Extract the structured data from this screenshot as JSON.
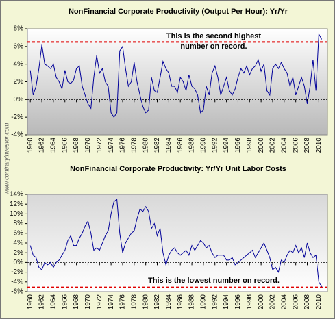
{
  "chart_data": [
    {
      "type": "line",
      "title": "NonFinancial Corporate Productivity (Output Per Hour): Yr/Yr",
      "annotation": [
        "This is the second highest",
        "number on record."
      ],
      "reference_line": 6.5,
      "color": "#000099",
      "xlim": [
        1959.5,
        2011.5
      ],
      "xticks": [
        1960,
        1962,
        1964,
        1966,
        1968,
        1970,
        1972,
        1974,
        1976,
        1978,
        1980,
        1982,
        1984,
        1986,
        1988,
        1990,
        1992,
        1994,
        1996,
        1998,
        2000,
        2002,
        2004,
        2006,
        2008,
        2010
      ],
      "ylim": [
        -4,
        8
      ],
      "yticks": [
        {
          "value": 8,
          "label": "8%"
        },
        {
          "value": 6,
          "label": "6%"
        },
        {
          "value": 4,
          "label": "4%"
        },
        {
          "value": 2,
          "label": "2%"
        },
        {
          "value": 0,
          "label": "0%"
        },
        {
          "value": -2,
          "label": "-2%"
        },
        {
          "value": -4,
          "label": "-4%"
        }
      ],
      "x": [
        1960,
        1960.5,
        1961,
        1961.5,
        1962,
        1962.5,
        1963,
        1963.5,
        1964,
        1964.5,
        1965,
        1965.5,
        1966,
        1966.5,
        1967,
        1967.5,
        1968,
        1968.5,
        1969,
        1969.5,
        1970,
        1970.5,
        1971,
        1971.5,
        1972,
        1972.5,
        1973,
        1973.5,
        1974,
        1974.5,
        1975,
        1975.5,
        1976,
        1976.5,
        1977,
        1977.5,
        1978,
        1978.5,
        1979,
        1979.5,
        1980,
        1980.5,
        1981,
        1981.5,
        1982,
        1982.5,
        1983,
        1983.5,
        1984,
        1984.5,
        1985,
        1985.5,
        1986,
        1986.5,
        1987,
        1987.5,
        1988,
        1988.5,
        1989,
        1989.5,
        1990,
        1990.5,
        1991,
        1991.5,
        1992,
        1992.5,
        1993,
        1993.5,
        1994,
        1994.5,
        1995,
        1995.5,
        1996,
        1996.5,
        1997,
        1997.5,
        1998,
        1998.5,
        1999,
        1999.5,
        2000,
        2000.5,
        2001,
        2001.5,
        2002,
        2002.5,
        2003,
        2003.5,
        2004,
        2004.5,
        2005,
        2005.5,
        2006,
        2006.5,
        2007,
        2007.5,
        2008,
        2008.5,
        2009,
        2009.5,
        2010,
        2010.5
      ],
      "values": [
        3.3,
        0.5,
        1.5,
        3.5,
        6.2,
        4.0,
        3.8,
        3.5,
        4.0,
        2.5,
        2.0,
        1.2,
        3.3,
        2.0,
        1.8,
        2.2,
        3.5,
        3.8,
        1.5,
        0.5,
        -0.5,
        -1.0,
        2.5,
        5.0,
        3.0,
        3.5,
        2.0,
        1.5,
        -1.5,
        -2.0,
        -1.5,
        5.5,
        6.0,
        3.5,
        1.5,
        2.0,
        4.2,
        2.0,
        0.5,
        -0.8,
        -1.5,
        -1.2,
        2.5,
        1.0,
        0.8,
        2.5,
        4.3,
        3.5,
        3.0,
        1.5,
        1.5,
        0.8,
        2.5,
        2.0,
        1.0,
        2.8,
        1.5,
        1.2,
        0.5,
        -1.5,
        -1.2,
        1.5,
        0.5,
        3.0,
        3.8,
        2.5,
        0.5,
        1.5,
        2.5,
        1.0,
        0.5,
        1.2,
        2.5,
        3.5,
        3.0,
        3.8,
        2.8,
        3.5,
        3.8,
        4.5,
        3.2,
        4.0,
        1.0,
        0.5,
        3.5,
        4.0,
        3.5,
        4.2,
        3.5,
        3.0,
        1.5,
        2.5,
        0.5,
        1.5,
        2.5,
        1.5,
        -0.5,
        1.5,
        4.5,
        1.0,
        7.4,
        6.8
      ]
    },
    {
      "type": "line",
      "title": "NonFinancial Corporate Productivity: Yr/Yr Unit Labor Costs",
      "annotation": [
        "This is the lowest number on record."
      ],
      "reference_line": -5.1,
      "color": "#000099",
      "xlim": [
        1959.5,
        2011.5
      ],
      "xticks": [
        1960,
        1962,
        1964,
        1966,
        1968,
        1970,
        1972,
        1974,
        1976,
        1978,
        1980,
        1982,
        1984,
        1986,
        1988,
        1990,
        1992,
        1994,
        1996,
        1998,
        2000,
        2002,
        2004,
        2006,
        2008,
        2010
      ],
      "ylim": [
        -6,
        14
      ],
      "yticks": [
        {
          "value": 14,
          "label": "14%"
        },
        {
          "value": 12,
          "label": "12%"
        },
        {
          "value": 10,
          "label": "10%"
        },
        {
          "value": 8,
          "label": "8%"
        },
        {
          "value": 6,
          "label": "6%"
        },
        {
          "value": 4,
          "label": "4%"
        },
        {
          "value": 2,
          "label": "2%"
        },
        {
          "value": 0,
          "label": "0%"
        },
        {
          "value": -2,
          "label": "-2%"
        },
        {
          "value": -4,
          "label": "-4%"
        },
        {
          "value": -6,
          "label": "-6%"
        }
      ],
      "x": [
        1960,
        1960.5,
        1961,
        1961.5,
        1962,
        1962.5,
        1963,
        1963.5,
        1964,
        1964.5,
        1965,
        1965.5,
        1966,
        1966.5,
        1967,
        1967.5,
        1968,
        1968.5,
        1969,
        1969.5,
        1970,
        1970.5,
        1971,
        1971.5,
        1972,
        1972.5,
        1973,
        1973.5,
        1974,
        1974.5,
        1975,
        1975.5,
        1976,
        1976.5,
        1977,
        1977.5,
        1978,
        1978.5,
        1979,
        1979.5,
        1980,
        1980.5,
        1981,
        1981.5,
        1982,
        1982.5,
        1983,
        1983.5,
        1984,
        1984.5,
        1985,
        1985.5,
        1986,
        1986.5,
        1987,
        1987.5,
        1988,
        1988.5,
        1989,
        1989.5,
        1990,
        1990.5,
        1991,
        1991.5,
        1992,
        1992.5,
        1993,
        1993.5,
        1994,
        1994.5,
        1995,
        1995.5,
        1996,
        1996.5,
        1997,
        1997.5,
        1998,
        1998.5,
        1999,
        1999.5,
        2000,
        2000.5,
        2001,
        2001.5,
        2002,
        2002.5,
        2003,
        2003.5,
        2004,
        2004.5,
        2005,
        2005.5,
        2006,
        2006.5,
        2007,
        2007.5,
        2008,
        2008.5,
        2009,
        2009.5,
        2010,
        2010.5
      ],
      "values": [
        3.5,
        1.5,
        1.0,
        -1.0,
        -1.5,
        0.0,
        -0.5,
        0.0,
        -1.0,
        0.0,
        0.5,
        1.5,
        2.5,
        4.5,
        5.5,
        3.5,
        3.5,
        5.0,
        6.0,
        7.5,
        8.5,
        6.0,
        2.5,
        3.0,
        2.5,
        4.0,
        5.5,
        6.5,
        10.0,
        12.5,
        13.0,
        6.0,
        2.0,
        4.0,
        5.0,
        6.0,
        6.5,
        9.0,
        11.0,
        10.5,
        11.5,
        10.5,
        7.0,
        8.0,
        5.5,
        7.0,
        2.0,
        -0.5,
        1.5,
        2.5,
        3.0,
        2.0,
        1.5,
        2.0,
        2.5,
        1.5,
        3.5,
        2.5,
        3.5,
        4.5,
        4.0,
        3.0,
        3.5,
        2.0,
        1.0,
        1.5,
        1.5,
        1.5,
        0.5,
        0.5,
        1.0,
        -0.5,
        0.0,
        0.5,
        1.0,
        1.5,
        2.0,
        2.5,
        1.0,
        2.0,
        3.0,
        4.0,
        2.5,
        1.0,
        -1.5,
        -1.0,
        -2.0,
        0.5,
        0.0,
        1.5,
        2.5,
        2.0,
        3.5,
        2.0,
        3.0,
        1.0,
        4.0,
        2.0,
        1.0,
        1.5,
        -4.0,
        -5.0
      ]
    }
  ],
  "watermark": "www.contraryinvestor.com"
}
